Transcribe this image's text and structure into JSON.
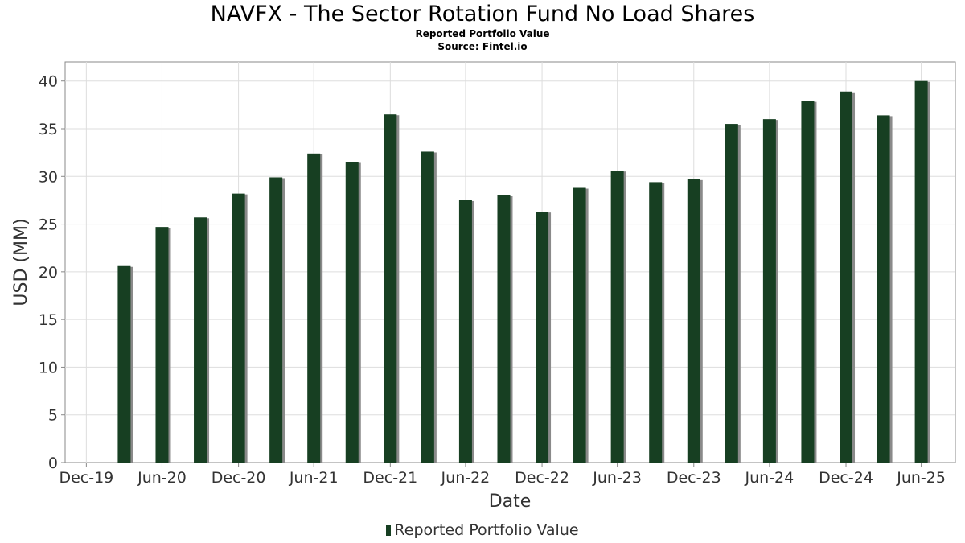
{
  "chart_data": {
    "type": "bar",
    "title": "NAVFX - The Sector Rotation Fund No Load Shares",
    "subtitle": "Reported Portfolio Value",
    "source": "Source: Fintel.io",
    "xlabel": "Date",
    "ylabel": "USD (MM)",
    "ylim": [
      0,
      42
    ],
    "yticks": [
      0,
      5,
      10,
      15,
      20,
      25,
      30,
      35,
      40
    ],
    "xlim": [
      "2019-11-10",
      "2025-09-20"
    ],
    "xticks": [
      {
        "date": "2019-12-31",
        "label": "Dec-19"
      },
      {
        "date": "2020-06-30",
        "label": "Jun-20"
      },
      {
        "date": "2020-12-31",
        "label": "Dec-20"
      },
      {
        "date": "2021-06-30",
        "label": "Jun-21"
      },
      {
        "date": "2021-12-31",
        "label": "Dec-21"
      },
      {
        "date": "2022-06-30",
        "label": "Jun-22"
      },
      {
        "date": "2022-12-31",
        "label": "Dec-22"
      },
      {
        "date": "2023-06-30",
        "label": "Jun-23"
      },
      {
        "date": "2023-12-31",
        "label": "Dec-23"
      },
      {
        "date": "2024-06-30",
        "label": "Jun-24"
      },
      {
        "date": "2024-12-31",
        "label": "Dec-24"
      },
      {
        "date": "2025-06-30",
        "label": "Jun-25"
      }
    ],
    "grid": true,
    "legend_position": "bottom",
    "colors": {
      "bar": "#173f22",
      "shadow": "#8a8a8a",
      "grid": "#dddddd",
      "axis": "#888888"
    },
    "series": [
      {
        "name": "Reported Portfolio Value",
        "x": [
          "2020-03-31",
          "2020-06-30",
          "2020-09-30",
          "2020-12-31",
          "2021-03-31",
          "2021-06-30",
          "2021-09-30",
          "2021-12-31",
          "2022-03-31",
          "2022-06-30",
          "2022-09-30",
          "2022-12-31",
          "2023-03-31",
          "2023-06-30",
          "2023-09-30",
          "2023-12-31",
          "2024-03-31",
          "2024-06-30",
          "2024-09-30",
          "2024-12-31",
          "2025-03-31",
          "2025-06-30"
        ],
        "values": [
          20.6,
          24.7,
          25.7,
          28.2,
          29.9,
          32.4,
          31.5,
          36.5,
          32.6,
          27.5,
          28.0,
          26.3,
          28.8,
          30.6,
          29.4,
          29.7,
          35.5,
          36.0,
          37.9,
          38.9,
          36.4,
          40.0
        ]
      }
    ]
  }
}
